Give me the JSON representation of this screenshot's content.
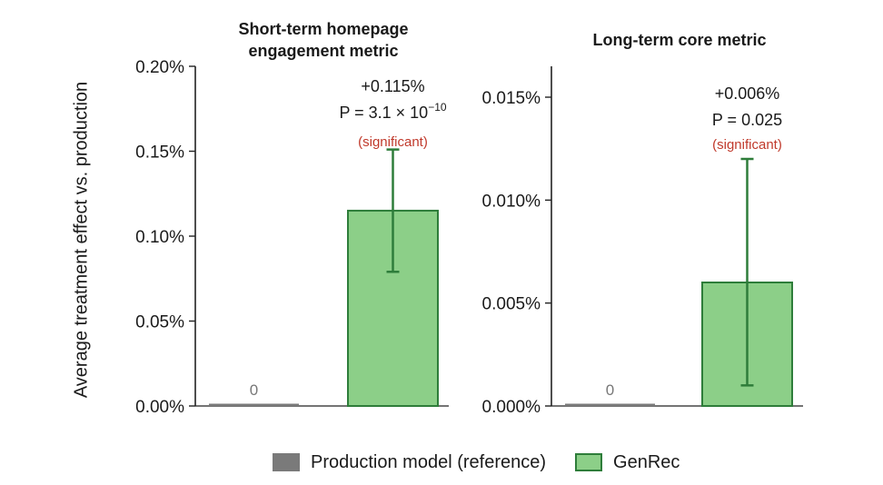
{
  "ylabel": "Average treatment effect vs. production",
  "legend": {
    "items": [
      {
        "label": "Production model (reference)",
        "color": "#7a7a7a"
      },
      {
        "label": "GenRec",
        "color": "#8ccf88",
        "edge": "#2e7d3a"
      }
    ]
  },
  "colors": {
    "production": "#7a7a7a",
    "genrec_fill": "#8ccf88",
    "genrec_edge": "#2e7d3a",
    "significant": "#c0392b",
    "zero_label": "#777777"
  },
  "chart_data": [
    {
      "type": "bar",
      "title": [
        "Short-term homepage",
        "engagement metric"
      ],
      "ylim": [
        0,
        0.2
      ],
      "ytick_values": [
        0,
        0.05,
        0.1,
        0.15,
        0.2
      ],
      "ytick_labels": [
        "0.00%",
        "0.05%",
        "0.10%",
        "0.15%",
        "0.20%"
      ],
      "unit": "%",
      "categories": [
        "Production model (reference)",
        "GenRec"
      ],
      "values": [
        0,
        0.115
      ],
      "error": {
        "low": 0.079,
        "high": 0.151
      },
      "labels": {
        "zero": "0",
        "effect": "+0.115%",
        "p_prefix": "P = 3.1 × 10",
        "p_exp": "−10",
        "significance": "(significant)"
      }
    },
    {
      "type": "bar",
      "title": [
        "Long-term core metric"
      ],
      "ylim": [
        0,
        0.0165
      ],
      "ytick_values": [
        0,
        0.005,
        0.01,
        0.015
      ],
      "ytick_labels": [
        "0.000%",
        "0.005%",
        "0.010%",
        "0.015%"
      ],
      "unit": "%",
      "categories": [
        "Production model (reference)",
        "GenRec"
      ],
      "values": [
        0,
        0.006
      ],
      "error": {
        "low": 0.001,
        "high": 0.012
      },
      "labels": {
        "zero": "0",
        "effect": "+0.006%",
        "p_prefix": "P = 0.025",
        "p_exp": "",
        "significance": "(significant)"
      }
    }
  ]
}
